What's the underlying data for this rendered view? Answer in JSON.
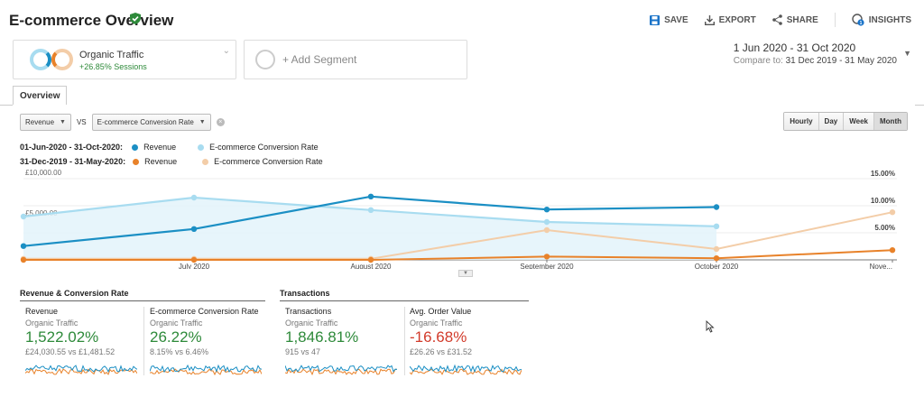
{
  "header": {
    "title": "E-commerce Overview",
    "actions": {
      "save": "SAVE",
      "export": "EXPORT",
      "share": "SHARE",
      "insights": "INSIGHTS",
      "insights_badge": "1"
    }
  },
  "segments": {
    "primary": {
      "title": "Organic Traffic",
      "subtitle": "+26.85% Sessions"
    },
    "add": "+ Add Segment"
  },
  "date_range": {
    "main": "1 Jun 2020 - 31 Oct 2020",
    "compare_label": "Compare to:",
    "compare_value": "31 Dec 2019 - 31 May 2020"
  },
  "tabs": {
    "overview": "Overview"
  },
  "metric_selectors": {
    "primary": "Revenue",
    "vs": "VS",
    "secondary": "E-commerce Conversion Rate"
  },
  "period_buttons": [
    "Hourly",
    "Day",
    "Week",
    "Month"
  ],
  "period_active": "Month",
  "legend": {
    "current_label": "01-Jun-2020 - 31-Oct-2020:",
    "previous_label": "31-Dec-2019 - 31-May-2020:",
    "revenue": "Revenue",
    "conversion": "E-commerce Conversion Rate"
  },
  "colors": {
    "revenue_current": "#1b8fc4",
    "conversion_current": "#a8dcf0",
    "revenue_previous": "#e8822a",
    "conversion_previous": "#f3cda8",
    "green": "#2e8a3a",
    "red": "#d23b2b"
  },
  "chart_data": {
    "type": "line",
    "categories": [
      "",
      "July 2020",
      "August 2020",
      "September 2020",
      "October 2020",
      "Nove..."
    ],
    "left_axis": {
      "ticks": [
        "£10,000.00",
        "£5,000.00"
      ],
      "range": [
        0,
        10000
      ]
    },
    "right_axis": {
      "ticks": [
        "15.00%",
        "10.00%",
        "5.00%"
      ],
      "range": [
        0,
        15
      ]
    },
    "series": [
      {
        "name": "Revenue",
        "period": "01-Jun-2020 - 31-Oct-2020",
        "axis": "left",
        "values": [
          1700,
          3800,
          7800,
          6200,
          6500,
          null
        ]
      },
      {
        "name": "E-commerce Conversion Rate",
        "period": "01-Jun-2020 - 31-Oct-2020",
        "axis": "right",
        "values": [
          8.0,
          11.5,
          9.2,
          7.0,
          6.2,
          null
        ]
      },
      {
        "name": "Revenue",
        "period": "31-Dec-2019 - 31-May-2020",
        "axis": "left",
        "values": [
          0,
          0,
          0,
          400,
          200,
          1200
        ]
      },
      {
        "name": "E-commerce Conversion Rate",
        "period": "31-Dec-2019 - 31-May-2020",
        "axis": "right",
        "values": [
          0.2,
          0.2,
          0.2,
          5.5,
          2.0,
          8.8
        ]
      }
    ]
  },
  "sections": {
    "revenue_conversion": {
      "title": "Revenue & Conversion Rate",
      "cards": [
        {
          "title": "Revenue",
          "segment": "Organic Traffic",
          "value": "1,522.02%",
          "compare": "£24,030.55 vs £1,481.52"
        },
        {
          "title": "E-commerce Conversion Rate",
          "segment": "Organic Traffic",
          "value": "26.22%",
          "compare": "8.15% vs 6.46%"
        }
      ]
    },
    "transactions": {
      "title": "Transactions",
      "cards": [
        {
          "title": "Transactions",
          "segment": "Organic Traffic",
          "value": "1,846.81%",
          "compare": "915 vs 47"
        },
        {
          "title": "Avg. Order Value",
          "segment": "Organic Traffic",
          "value": "-16.68%",
          "compare": "£26.26 vs £31.52"
        }
      ]
    }
  }
}
